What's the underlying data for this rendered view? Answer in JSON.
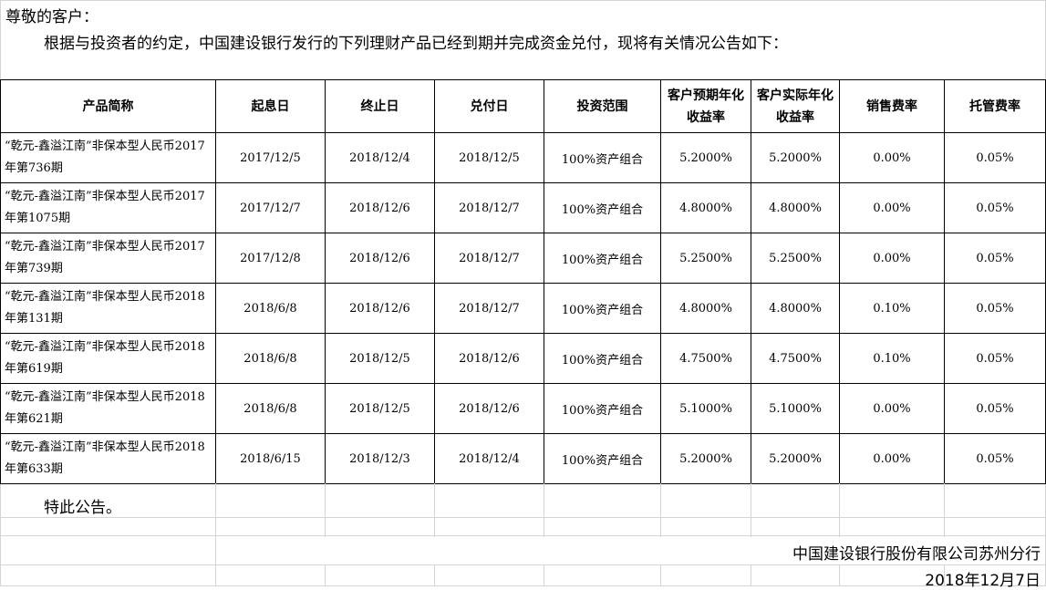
{
  "greeting": "尊敬的客户：",
  "intro": "根据与投资者的约定，中国建设银行发行的下列理财产品已经到期并完成资金兑付，现将有关情况公告如下：",
  "table": {
    "headers": [
      "产品简称",
      "起息日",
      "终止日",
      "兑付日",
      "投资范围",
      "客户预期年化收益率",
      "客户实际年化收益率",
      "销售费率",
      "托管费率"
    ],
    "rows": [
      [
        "“乾元-鑫溢江南”非保本型人民币2017年第736期",
        "2017/12/5",
        "2018/12/4",
        "2018/12/5",
        "100%资产组合",
        "5.2000%",
        "5.2000%",
        "0.00%",
        "0.05%"
      ],
      [
        "“乾元-鑫溢江南”非保本型人民币2017年第1075期",
        "2017/12/7",
        "2018/12/6",
        "2018/12/7",
        "100%资产组合",
        "4.8000%",
        "4.8000%",
        "0.00%",
        "0.05%"
      ],
      [
        "“乾元-鑫溢江南”非保本型人民币2017年第739期",
        "2017/12/8",
        "2018/12/6",
        "2018/12/7",
        "100%资产组合",
        "5.2500%",
        "5.2500%",
        "0.00%",
        "0.05%"
      ],
      [
        "“乾元-鑫溢江南”非保本型人民币2018年第131期",
        "2018/6/8",
        "2018/12/6",
        "2018/12/7",
        "100%资产组合",
        "4.8000%",
        "4.8000%",
        "0.10%",
        "0.05%"
      ],
      [
        "“乾元-鑫溢江南”非保本型人民币2018年第619期",
        "2018/6/8",
        "2018/12/5",
        "2018/12/6",
        "100%资产组合",
        "4.7500%",
        "4.7500%",
        "0.10%",
        "0.05%"
      ],
      [
        "“乾元-鑫溢江南”非保本型人民币2018年第621期",
        "2018/6/8",
        "2018/12/5",
        "2018/12/6",
        "100%资产组合",
        "5.1000%",
        "5.1000%",
        "0.00%",
        "0.05%"
      ],
      [
        "“乾元-鑫溢江南”非保本型人民币2018年第633期",
        "2018/6/15",
        "2018/12/3",
        "2018/12/4",
        "100%资产组合",
        "5.2000%",
        "5.2000%",
        "0.00%",
        "0.05%"
      ]
    ]
  },
  "closing": "特此公告。",
  "issuer": "中国建设银行股份有限公司苏州分行",
  "date": "2018年12月7日"
}
